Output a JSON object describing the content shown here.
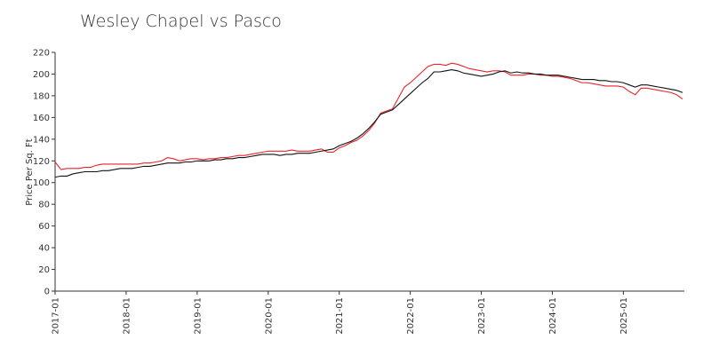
{
  "chart_data": {
    "type": "line",
    "title": "Wesley Chapel vs Pasco",
    "y_label": "Price Per Sq. Ft",
    "x": [
      "2017-01",
      "2017-02",
      "2017-03",
      "2017-04",
      "2017-05",
      "2017-06",
      "2017-07",
      "2017-08",
      "2017-09",
      "2017-10",
      "2017-11",
      "2017-12",
      "2018-01",
      "2018-02",
      "2018-03",
      "2018-04",
      "2018-05",
      "2018-06",
      "2018-07",
      "2018-08",
      "2018-09",
      "2018-10",
      "2018-11",
      "2018-12",
      "2019-01",
      "2019-02",
      "2019-03",
      "2019-04",
      "2019-05",
      "2019-06",
      "2019-07",
      "2019-08",
      "2019-09",
      "2019-10",
      "2019-11",
      "2019-12",
      "2020-01",
      "2020-02",
      "2020-03",
      "2020-04",
      "2020-05",
      "2020-06",
      "2020-07",
      "2020-08",
      "2020-09",
      "2020-10",
      "2020-11",
      "2020-12",
      "2021-01",
      "2021-02",
      "2021-03",
      "2021-04",
      "2021-05",
      "2021-06",
      "2021-07",
      "2021-08",
      "2021-09",
      "2021-10",
      "2021-11",
      "2021-12",
      "2022-01",
      "2022-02",
      "2022-03",
      "2022-04",
      "2022-05",
      "2022-06",
      "2022-07",
      "2022-08",
      "2022-09",
      "2022-10",
      "2022-11",
      "2022-12",
      "2023-01",
      "2023-02",
      "2023-03",
      "2023-04",
      "2023-05",
      "2023-06",
      "2023-07",
      "2023-08",
      "2023-09",
      "2023-10",
      "2023-11",
      "2023-12",
      "2024-01",
      "2024-02",
      "2024-03",
      "2024-04",
      "2024-05",
      "2024-06",
      "2024-07",
      "2024-08",
      "2024-09",
      "2024-10",
      "2024-11",
      "2024-12",
      "2025-01",
      "2025-02",
      "2025-03",
      "2025-04",
      "2025-05",
      "2025-06",
      "2025-07",
      "2025-08",
      "2025-09",
      "2025-10",
      "2025-11"
    ],
    "xticks": [
      "2017-01",
      "2018-01",
      "2019-01",
      "2020-01",
      "2021-01",
      "2022-01",
      "2023-01",
      "2024-01",
      "2025-01"
    ],
    "series": [
      {
        "color": "#e8232a",
        "values": [
          119,
          112,
          113,
          113,
          113,
          114,
          114,
          116,
          117,
          117,
          117,
          117,
          117,
          117,
          117,
          118,
          118,
          119,
          120,
          123,
          122,
          120,
          121,
          122,
          122,
          121,
          122,
          122,
          123,
          123,
          124,
          125,
          125,
          126,
          127,
          128,
          129,
          129,
          129,
          129,
          130,
          129,
          129,
          129,
          130,
          131,
          128,
          128,
          132,
          134,
          137,
          139,
          143,
          148,
          155,
          164,
          166,
          168,
          178,
          188,
          192,
          197,
          202,
          207,
          209,
          209,
          208,
          210,
          209,
          207,
          205,
          204,
          203,
          202,
          203,
          203,
          202,
          199,
          199,
          199,
          200,
          200,
          199,
          199,
          198,
          198,
          197,
          196,
          194,
          192,
          192,
          191,
          190,
          189,
          189,
          189,
          188,
          184,
          181,
          187,
          187,
          186,
          185,
          184,
          183,
          181,
          177
        ]
      },
      {
        "color": "#111111",
        "values": [
          105,
          106,
          106,
          108,
          109,
          110,
          110,
          110,
          111,
          111,
          112,
          113,
          113,
          113,
          114,
          115,
          115,
          116,
          117,
          118,
          118,
          118,
          119,
          119,
          120,
          120,
          120,
          121,
          121,
          122,
          122,
          123,
          123,
          124,
          125,
          126,
          126,
          126,
          125,
          126,
          126,
          127,
          127,
          127,
          128,
          129,
          130,
          131,
          134,
          136,
          138,
          141,
          145,
          150,
          156,
          163,
          165,
          167,
          172,
          177,
          182,
          187,
          192,
          196,
          202,
          202,
          203,
          204,
          203,
          201,
          200,
          199,
          198,
          199,
          200,
          202,
          203,
          201,
          202,
          201,
          201,
          200,
          200,
          199,
          199,
          199,
          198,
          197,
          196,
          195,
          195,
          195,
          194,
          194,
          193,
          193,
          192,
          190,
          188,
          190,
          190,
          189,
          188,
          187,
          186,
          185,
          183
        ]
      }
    ],
    "ylim": [
      0,
      220
    ],
    "yticks": [
      0,
      20,
      40,
      60,
      80,
      100,
      120,
      140,
      160,
      180,
      200,
      220
    ]
  }
}
